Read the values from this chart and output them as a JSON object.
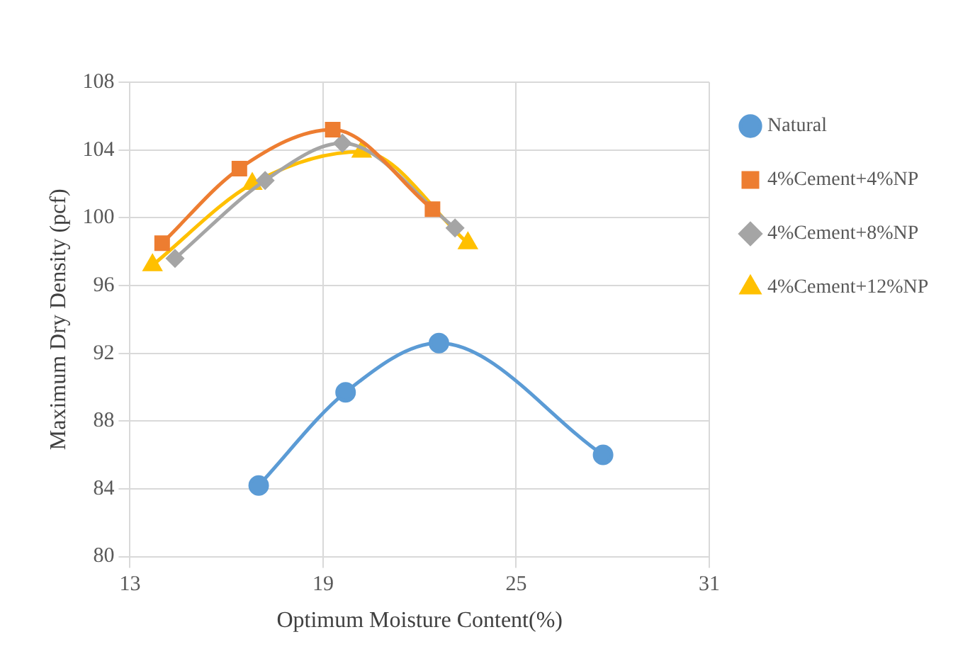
{
  "chart_data": {
    "type": "line",
    "xlabel": "Optimum Moisture Content(%)",
    "ylabel": "Maximum Dry Density (pcf)",
    "xlim": [
      13,
      31
    ],
    "xticks": [
      13,
      19,
      25,
      31
    ],
    "ylim": [
      80,
      108
    ],
    "yticks": [
      80,
      84,
      88,
      92,
      96,
      100,
      104,
      108
    ],
    "grid": true,
    "legend": "right",
    "series": [
      {
        "name": "Natural",
        "color": "#5b9bd5",
        "marker": "circle",
        "x": [
          17.0,
          19.7,
          22.6,
          27.7
        ],
        "values": [
          84.2,
          89.7,
          92.6,
          86.0
        ]
      },
      {
        "name": "4%Cement+4%NP",
        "color": "#ed7d31",
        "marker": "square",
        "x": [
          14.0,
          16.4,
          19.3,
          22.4
        ],
        "values": [
          98.5,
          102.9,
          105.2,
          100.5
        ]
      },
      {
        "name": "4%Cement+8%NP",
        "color": "#a5a5a5",
        "marker": "diamond",
        "x": [
          14.4,
          17.2,
          19.6,
          23.1
        ],
        "values": [
          97.6,
          102.2,
          104.4,
          99.4
        ]
      },
      {
        "name": "4%Cement+12%NP",
        "color": "#ffc000",
        "marker": "triangle",
        "x": [
          13.7,
          16.8,
          20.2,
          23.5
        ],
        "values": [
          97.2,
          102.0,
          103.9,
          98.5
        ]
      }
    ]
  }
}
